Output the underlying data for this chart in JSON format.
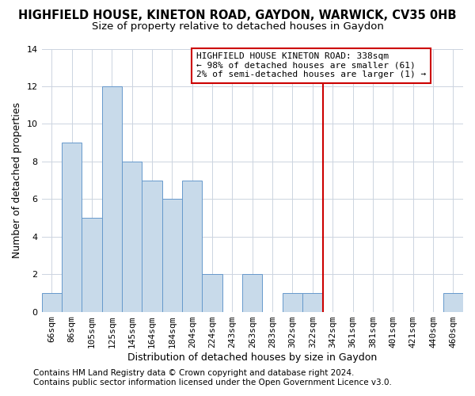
{
  "title": "HIGHFIELD HOUSE, KINETON ROAD, GAYDON, WARWICK, CV35 0HB",
  "subtitle": "Size of property relative to detached houses in Gaydon",
  "xlabel": "Distribution of detached houses by size in Gaydon",
  "ylabel": "Number of detached properties",
  "footer1": "Contains HM Land Registry data © Crown copyright and database right 2024.",
  "footer2": "Contains public sector information licensed under the Open Government Licence v3.0.",
  "categories": [
    "66sqm",
    "86sqm",
    "105sqm",
    "125sqm",
    "145sqm",
    "164sqm",
    "184sqm",
    "204sqm",
    "224sqm",
    "243sqm",
    "263sqm",
    "283sqm",
    "302sqm",
    "322sqm",
    "342sqm",
    "361sqm",
    "381sqm",
    "401sqm",
    "421sqm",
    "440sqm",
    "460sqm"
  ],
  "values": [
    1,
    9,
    5,
    12,
    8,
    7,
    6,
    7,
    2,
    0,
    2,
    0,
    1,
    1,
    0,
    0,
    0,
    0,
    0,
    0,
    1
  ],
  "bar_color": "#c8daea",
  "bar_edge_color": "#6699cc",
  "grid_color": "#ccd4e0",
  "annotation_text": "HIGHFIELD HOUSE KINETON ROAD: 338sqm\n← 98% of detached houses are smaller (61)\n2% of semi-detached houses are larger (1) →",
  "annotation_box_edge": "#cc0000",
  "vline_x": 13.5,
  "vline_color": "#cc0000",
  "ylim": [
    0,
    14
  ],
  "yticks": [
    0,
    2,
    4,
    6,
    8,
    10,
    12,
    14
  ],
  "background_color": "#ffffff",
  "plot_bg_color": "#ffffff",
  "title_fontsize": 10.5,
  "subtitle_fontsize": 9.5,
  "axis_label_fontsize": 9,
  "tick_fontsize": 8,
  "annotation_fontsize": 8,
  "footer_fontsize": 7.5
}
